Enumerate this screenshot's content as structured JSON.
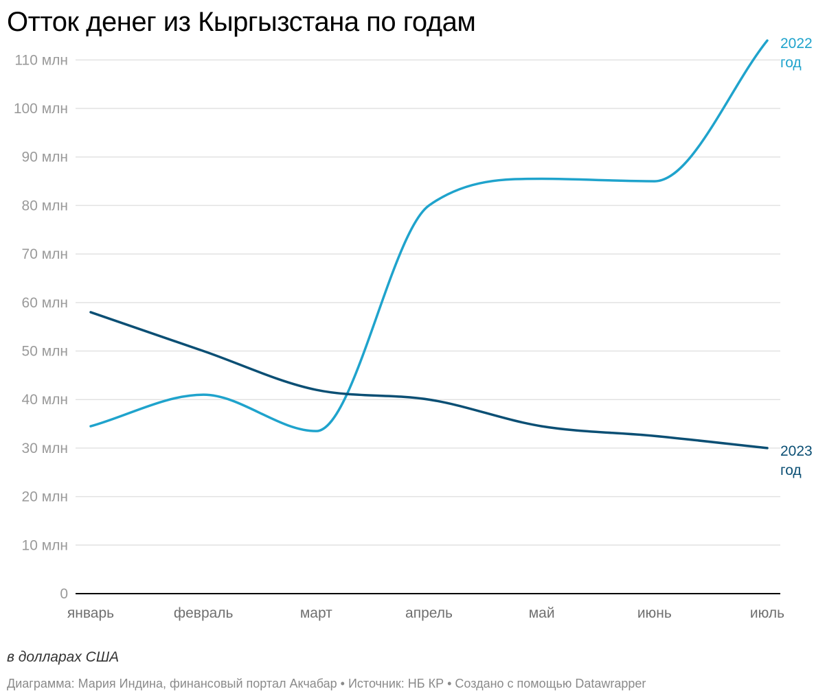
{
  "title": "Отток денег из Кыргызстана по годам",
  "subtitle": "в долларах США",
  "footer": "Диаграмма: Мария Индина, финансовый портал Акчабар • Источник: НБ КР • Создано с помощью Datawrapper",
  "colors": {
    "series_2022": "#1fa3cc",
    "series_2023": "#0b4f74",
    "grid": "#e2e2e2",
    "axis": "#000000"
  },
  "chart_data": {
    "type": "line",
    "title": "Отток денег из Кыргызстана по годам",
    "xlabel": "",
    "ylabel": "в долларах США",
    "categories": [
      "январь",
      "февраль",
      "март",
      "апрель",
      "май",
      "июнь",
      "июль"
    ],
    "ylim": [
      0,
      115
    ],
    "yticks": [
      0,
      10,
      20,
      30,
      40,
      50,
      60,
      70,
      80,
      90,
      100,
      110
    ],
    "ytick_labels": [
      "0",
      "10 млн",
      "20 млн",
      "30 млн",
      "40 млн",
      "50 млн",
      "60 млн",
      "70 млн",
      "80 млн",
      "90 млн",
      "100 млн",
      "110 млн"
    ],
    "grid": true,
    "series": [
      {
        "key": "s2022",
        "name": "2022 год",
        "label_lines": [
          "2022",
          "год"
        ],
        "color": "#1fa3cc",
        "values": [
          34.5,
          41,
          33.5,
          80,
          85.5,
          85,
          114
        ]
      },
      {
        "key": "s2023",
        "name": "2023 год",
        "label_lines": [
          "2023",
          "год"
        ],
        "color": "#0b4f74",
        "values": [
          58,
          50,
          42,
          40,
          34.5,
          32.5,
          30
        ]
      }
    ]
  }
}
